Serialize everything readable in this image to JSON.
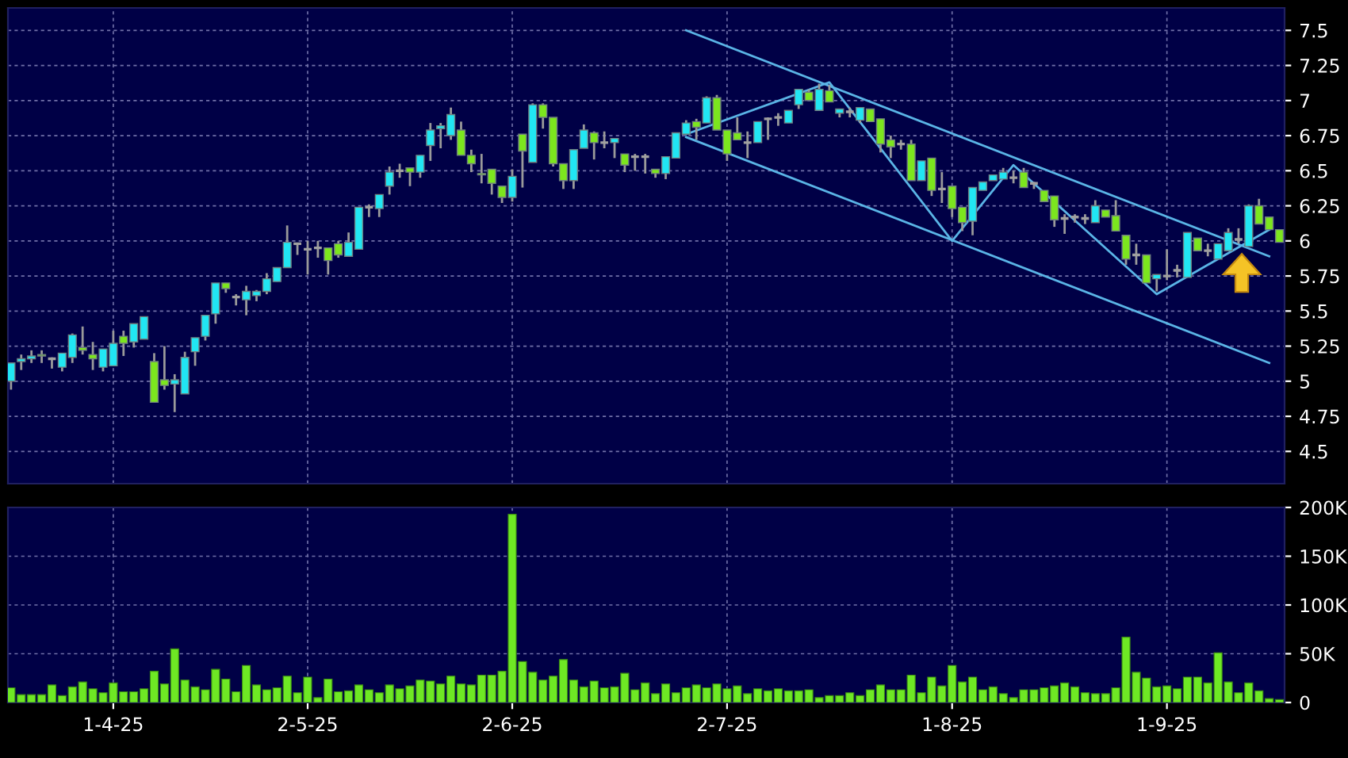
{
  "chart_data": [
    {
      "type": "candlestick",
      "categories": [
        null,
        null,
        null,
        null,
        null,
        null,
        null,
        null,
        null,
        null,
        null,
        null,
        null,
        null,
        null,
        null,
        null,
        null,
        null,
        null,
        null,
        null,
        null,
        null,
        null,
        null,
        null,
        null,
        null,
        null,
        null,
        null,
        null,
        null,
        null,
        null,
        null,
        null,
        null,
        null,
        null,
        null,
        null,
        null,
        null,
        null,
        null,
        null,
        null,
        null,
        null,
        null,
        null,
        null,
        null,
        null,
        null,
        null,
        null,
        null,
        null,
        null,
        null,
        null,
        null,
        null,
        null,
        null,
        null,
        null,
        null,
        null,
        null,
        null,
        null,
        null,
        null,
        null,
        null,
        null,
        null,
        null,
        null,
        null,
        null,
        null,
        null,
        null,
        null,
        null,
        null,
        null,
        null,
        null,
        null,
        null,
        null,
        null,
        null,
        null,
        null,
        null,
        null,
        null,
        null,
        null,
        null,
        null,
        null,
        null,
        null,
        null,
        null,
        null,
        null,
        null,
        null,
        null,
        null,
        null,
        null,
        null,
        null,
        null,
        null
      ],
      "ohlc": [
        [
          5.0,
          5.13,
          4.94,
          5.13
        ],
        [
          5.14,
          5.19,
          5.08,
          5.16
        ],
        [
          5.16,
          5.22,
          5.13,
          5.18
        ],
        [
          5.19,
          5.22,
          5.13,
          5.18
        ],
        [
          5.16,
          5.17,
          5.09,
          5.16
        ],
        [
          5.1,
          5.2,
          5.07,
          5.2
        ],
        [
          5.17,
          5.34,
          5.13,
          5.33
        ],
        [
          5.24,
          5.39,
          5.19,
          5.22
        ],
        [
          5.19,
          5.28,
          5.08,
          5.16
        ],
        [
          5.1,
          5.23,
          5.07,
          5.23
        ],
        [
          5.11,
          5.36,
          5.11,
          5.27
        ],
        [
          5.32,
          5.36,
          5.18,
          5.27
        ],
        [
          5.28,
          5.41,
          5.24,
          5.41
        ],
        [
          5.3,
          5.46,
          5.3,
          5.46
        ],
        [
          5.14,
          5.2,
          4.85,
          4.85
        ],
        [
          5.01,
          5.25,
          4.94,
          4.97
        ],
        [
          4.98,
          5.05,
          4.78,
          5.01
        ],
        [
          4.91,
          5.21,
          4.91,
          5.17
        ],
        [
          5.21,
          5.31,
          5.11,
          5.31
        ],
        [
          5.32,
          5.47,
          5.29,
          5.47
        ],
        [
          5.48,
          5.7,
          5.41,
          5.7
        ],
        [
          5.7,
          5.7,
          5.63,
          5.66
        ],
        [
          5.6,
          5.62,
          5.54,
          5.6
        ],
        [
          5.58,
          5.68,
          5.47,
          5.64
        ],
        [
          5.61,
          5.65,
          5.57,
          5.64
        ],
        [
          5.64,
          5.77,
          5.62,
          5.73
        ],
        [
          5.71,
          5.81,
          5.71,
          5.81
        ],
        [
          5.81,
          6.11,
          5.81,
          5.99
        ],
        [
          5.98,
          5.98,
          5.9,
          5.98
        ],
        [
          5.94,
          6.0,
          5.76,
          5.94
        ],
        [
          5.95,
          6.0,
          5.88,
          5.95
        ],
        [
          5.95,
          5.95,
          5.76,
          5.86
        ],
        [
          5.98,
          6.0,
          5.88,
          5.9
        ],
        [
          5.89,
          6.06,
          5.89,
          5.99
        ],
        [
          5.94,
          6.24,
          5.94,
          6.24
        ],
        [
          6.24,
          6.26,
          6.17,
          6.24
        ],
        [
          6.23,
          6.33,
          6.17,
          6.33
        ],
        [
          6.39,
          6.53,
          6.33,
          6.49
        ],
        [
          6.5,
          6.55,
          6.45,
          6.5
        ],
        [
          6.52,
          6.52,
          6.39,
          6.49
        ],
        [
          6.49,
          6.61,
          6.45,
          6.61
        ],
        [
          6.68,
          6.84,
          6.57,
          6.79
        ],
        [
          6.8,
          6.84,
          6.66,
          6.82
        ],
        [
          6.75,
          6.95,
          6.72,
          6.9
        ],
        [
          6.79,
          6.85,
          6.61,
          6.61
        ],
        [
          6.61,
          6.65,
          6.49,
          6.55
        ],
        [
          6.48,
          6.62,
          6.41,
          6.47
        ],
        [
          6.51,
          6.51,
          6.33,
          6.41
        ],
        [
          6.39,
          6.39,
          6.27,
          6.31
        ],
        [
          6.31,
          6.51,
          6.28,
          6.46
        ],
        [
          6.76,
          6.76,
          6.38,
          6.64
        ],
        [
          6.56,
          6.98,
          6.56,
          6.97
        ],
        [
          6.97,
          6.98,
          6.8,
          6.88
        ],
        [
          6.88,
          6.88,
          6.53,
          6.55
        ],
        [
          6.55,
          6.55,
          6.37,
          6.43
        ],
        [
          6.43,
          6.65,
          6.37,
          6.65
        ],
        [
          6.66,
          6.83,
          6.66,
          6.79
        ],
        [
          6.77,
          6.78,
          6.58,
          6.7
        ],
        [
          6.7,
          6.78,
          6.66,
          6.7
        ],
        [
          6.7,
          6.73,
          6.59,
          6.73
        ],
        [
          6.62,
          6.62,
          6.49,
          6.54
        ],
        [
          6.6,
          6.62,
          6.5,
          6.6
        ],
        [
          6.6,
          6.62,
          6.48,
          6.6
        ],
        [
          6.51,
          6.51,
          6.45,
          6.48
        ],
        [
          6.48,
          6.6,
          6.44,
          6.6
        ],
        [
          6.59,
          6.77,
          6.59,
          6.77
        ],
        [
          6.76,
          6.86,
          6.76,
          6.84
        ],
        [
          6.85,
          6.87,
          6.72,
          6.81
        ],
        [
          6.84,
          7.03,
          6.84,
          7.02
        ],
        [
          7.02,
          7.04,
          6.79,
          6.79
        ],
        [
          6.79,
          6.79,
          6.57,
          6.62
        ],
        [
          6.77,
          6.88,
          6.72,
          6.72
        ],
        [
          6.7,
          6.78,
          6.59,
          6.7
        ],
        [
          6.7,
          6.85,
          6.7,
          6.85
        ],
        [
          6.87,
          6.88,
          6.72,
          6.87
        ],
        [
          6.88,
          6.91,
          6.82,
          6.88
        ],
        [
          6.84,
          6.93,
          6.84,
          6.93
        ],
        [
          6.97,
          7.08,
          6.94,
          7.08
        ],
        [
          7.06,
          7.08,
          7.0,
          7.0
        ],
        [
          6.93,
          7.12,
          6.93,
          7.08
        ],
        [
          7.07,
          7.11,
          6.99,
          6.99
        ],
        [
          6.91,
          6.94,
          6.88,
          6.94
        ],
        [
          6.92,
          6.95,
          6.88,
          6.92
        ],
        [
          6.86,
          6.95,
          6.84,
          6.95
        ],
        [
          6.94,
          6.94,
          6.85,
          6.85
        ],
        [
          6.87,
          6.87,
          6.63,
          6.69
        ],
        [
          6.72,
          6.75,
          6.59,
          6.67
        ],
        [
          6.69,
          6.72,
          6.65,
          6.69
        ],
        [
          6.69,
          6.72,
          6.43,
          6.43
        ],
        [
          6.43,
          6.57,
          6.43,
          6.57
        ],
        [
          6.59,
          6.59,
          6.32,
          6.36
        ],
        [
          6.37,
          6.49,
          6.27,
          6.37
        ],
        [
          6.39,
          6.39,
          6.17,
          6.23
        ],
        [
          6.24,
          6.24,
          6.07,
          6.13
        ],
        [
          6.14,
          6.38,
          6.04,
          6.38
        ],
        [
          6.36,
          6.42,
          6.36,
          6.42
        ],
        [
          6.43,
          6.47,
          6.43,
          6.47
        ],
        [
          6.44,
          6.52,
          6.44,
          6.49
        ],
        [
          6.45,
          6.5,
          6.41,
          6.45
        ],
        [
          6.49,
          6.52,
          6.38,
          6.38
        ],
        [
          6.41,
          6.42,
          6.37,
          6.41
        ],
        [
          6.36,
          6.36,
          6.28,
          6.28
        ],
        [
          6.32,
          6.32,
          6.1,
          6.15
        ],
        [
          6.16,
          6.19,
          6.05,
          6.16
        ],
        [
          6.17,
          6.19,
          6.13,
          6.17
        ],
        [
          6.16,
          6.19,
          6.12,
          6.16
        ],
        [
          6.13,
          6.29,
          6.13,
          6.25
        ],
        [
          6.22,
          6.22,
          6.17,
          6.17
        ],
        [
          6.18,
          6.29,
          6.07,
          6.07
        ],
        [
          6.04,
          6.04,
          5.83,
          5.87
        ],
        [
          5.9,
          5.98,
          5.83,
          5.9
        ],
        [
          5.9,
          5.9,
          5.7,
          5.7
        ],
        [
          5.73,
          5.76,
          5.64,
          5.76
        ],
        [
          5.75,
          5.94,
          5.72,
          5.75
        ],
        [
          5.79,
          5.83,
          5.74,
          5.79
        ],
        [
          5.74,
          6.06,
          5.74,
          6.06
        ],
        [
          6.02,
          6.02,
          5.93,
          5.93
        ],
        [
          5.93,
          5.98,
          5.89,
          5.93
        ],
        [
          5.87,
          5.98,
          5.87,
          5.98
        ],
        [
          5.93,
          6.09,
          5.93,
          6.06
        ],
        [
          6.01,
          6.09,
          5.98,
          6.01
        ],
        [
          5.96,
          6.26,
          5.96,
          6.25
        ],
        [
          6.25,
          6.3,
          6.12,
          6.12
        ],
        [
          6.17,
          6.17,
          6.08,
          6.08
        ],
        [
          6.08,
          6.08,
          5.99,
          5.99
        ]
      ],
      "colors": [
        "#21e6f3",
        "#21e6f3",
        "#21e6f3",
        "#7ce61e",
        "#a0a0a0",
        "#21e6f3",
        "#21e6f3",
        "#7ce61e",
        "#7ce61e",
        "#21e6f3",
        "#21e6f3",
        "#7ce61e",
        "#21e6f3",
        "#21e6f3",
        "#7ce61e",
        "#7ce61e",
        "#21e6f3",
        "#21e6f3",
        "#21e6f3",
        "#21e6f3",
        "#21e6f3",
        "#7ce61e",
        "#a0a0a0",
        "#21e6f3",
        "#21e6f3",
        "#21e6f3",
        "#21e6f3",
        "#21e6f3",
        "#a0a0a0",
        "#a0a0a0",
        "#a0a0a0",
        "#7ce61e",
        "#7ce61e",
        "#21e6f3",
        "#21e6f3",
        "#a0a0a0",
        "#21e6f3",
        "#21e6f3",
        "#a0a0a0",
        "#7ce61e",
        "#21e6f3",
        "#21e6f3",
        "#21e6f3",
        "#21e6f3",
        "#7ce61e",
        "#7ce61e",
        "#7ce61e",
        "#7ce61e",
        "#7ce61e",
        "#21e6f3",
        "#7ce61e",
        "#21e6f3",
        "#7ce61e",
        "#7ce61e",
        "#7ce61e",
        "#21e6f3",
        "#21e6f3",
        "#7ce61e",
        "#a0a0a0",
        "#21e6f3",
        "#7ce61e",
        "#a0a0a0",
        "#a0a0a0",
        "#7ce61e",
        "#21e6f3",
        "#21e6f3",
        "#21e6f3",
        "#7ce61e",
        "#21e6f3",
        "#7ce61e",
        "#7ce61e",
        "#7ce61e",
        "#a0a0a0",
        "#21e6f3",
        "#a0a0a0",
        "#a0a0a0",
        "#21e6f3",
        "#21e6f3",
        "#7ce61e",
        "#21e6f3",
        "#7ce61e",
        "#21e6f3",
        "#a0a0a0",
        "#21e6f3",
        "#7ce61e",
        "#7ce61e",
        "#7ce61e",
        "#a0a0a0",
        "#7ce61e",
        "#21e6f3",
        "#7ce61e",
        "#a0a0a0",
        "#7ce61e",
        "#7ce61e",
        "#21e6f3",
        "#21e6f3",
        "#21e6f3",
        "#21e6f3",
        "#a0a0a0",
        "#7ce61e",
        "#a0a0a0",
        "#7ce61e",
        "#7ce61e",
        "#a0a0a0",
        "#a0a0a0",
        "#a0a0a0",
        "#21e6f3",
        "#7ce61e",
        "#7ce61e",
        "#7ce61e",
        "#a0a0a0",
        "#7ce61e",
        "#21e6f3",
        "#a0a0a0",
        "#a0a0a0",
        "#21e6f3",
        "#7ce61e",
        "#a0a0a0",
        "#21e6f3",
        "#21e6f3",
        "#a0a0a0",
        "#21e6f3",
        "#7ce61e",
        "#7ce61e",
        "#7ce61e"
      ],
      "series": [
        {
          "type": "line",
          "color": "#5ab4e6",
          "values": [
            null,
            null,
            null,
            null,
            null,
            null,
            null,
            null,
            null,
            null,
            null,
            null,
            null,
            null,
            null,
            null,
            null,
            null,
            null,
            null,
            null,
            null,
            null,
            null,
            null,
            null,
            null,
            null,
            null,
            null,
            null,
            null,
            null,
            null,
            null,
            null,
            null,
            null,
            null,
            null,
            null,
            null,
            null,
            null,
            null,
            null,
            null,
            null,
            null,
            null,
            null,
            null,
            null,
            null,
            null,
            null,
            null,
            null,
            null,
            null,
            null,
            null,
            null,
            null,
            null,
            null,
            7.5,
            null,
            null,
            null,
            null,
            null,
            null,
            null,
            null,
            null,
            null,
            null,
            null,
            null,
            null,
            null,
            null,
            null,
            null,
            null,
            null,
            null,
            null,
            null,
            null,
            null,
            null,
            null,
            null,
            null,
            null,
            null,
            null,
            null,
            null,
            null,
            null,
            null,
            null,
            null,
            null,
            null,
            null,
            null,
            null,
            null,
            null,
            null,
            null,
            null,
            null,
            null,
            null,
            null,
            null,
            null,
            null,
            5.89,
            null
          ]
        },
        {
          "type": "line",
          "color": "#5ab4e6",
          "values": [
            null,
            null,
            null,
            null,
            null,
            null,
            null,
            null,
            null,
            null,
            null,
            null,
            null,
            null,
            null,
            null,
            null,
            null,
            null,
            null,
            null,
            null,
            null,
            null,
            null,
            null,
            null,
            null,
            null,
            null,
            null,
            null,
            null,
            null,
            null,
            null,
            null,
            null,
            null,
            null,
            null,
            null,
            null,
            null,
            null,
            null,
            null,
            null,
            null,
            null,
            null,
            null,
            null,
            null,
            null,
            null,
            null,
            null,
            null,
            null,
            null,
            null,
            null,
            null,
            null,
            null,
            6.74,
            null,
            null,
            null,
            null,
            null,
            null,
            null,
            null,
            null,
            null,
            null,
            null,
            null,
            null,
            null,
            null,
            null,
            null,
            null,
            null,
            null,
            null,
            null,
            null,
            null,
            null,
            null,
            null,
            null,
            null,
            null,
            null,
            null,
            null,
            null,
            null,
            null,
            null,
            null,
            null,
            null,
            null,
            null,
            null,
            null,
            null,
            null,
            null,
            null,
            null,
            null,
            null,
            null,
            null,
            null,
            null,
            5.13,
            null
          ]
        },
        {
          "type": "line",
          "color": "#5ab4e6",
          "values": [
            null,
            null,
            null,
            null,
            null,
            null,
            null,
            null,
            null,
            null,
            null,
            null,
            null,
            null,
            null,
            null,
            null,
            null,
            null,
            null,
            null,
            null,
            null,
            null,
            null,
            null,
            null,
            null,
            null,
            null,
            null,
            null,
            null,
            null,
            null,
            null,
            null,
            null,
            null,
            null,
            null,
            null,
            null,
            null,
            null,
            null,
            null,
            null,
            null,
            null,
            null,
            null,
            null,
            null,
            null,
            null,
            null,
            null,
            null,
            null,
            null,
            null,
            null,
            null,
            null,
            null,
            6.76,
            null,
            null,
            null,
            null,
            null,
            null,
            null,
            null,
            null,
            null,
            null,
            null,
            null,
            7.13,
            null,
            null,
            null,
            null,
            null,
            null,
            null,
            null,
            null,
            null,
            null,
            6.0,
            null,
            null,
            null,
            null,
            null,
            6.54,
            null,
            null,
            null,
            null,
            null,
            null,
            null,
            null,
            null,
            null,
            null,
            null,
            null,
            5.62,
            null,
            null,
            null,
            null,
            null,
            null,
            null,
            null,
            null,
            null,
            6.08,
            null
          ]
        }
      ],
      "ylim": [
        4.27,
        7.66
      ],
      "yticks": [
        4.5,
        4.75,
        5,
        5.25,
        5.5,
        5.75,
        6,
        6.25,
        6.5,
        6.75,
        7,
        7.25,
        7.5
      ],
      "grid": true,
      "tick_labels": "y"
    },
    {
      "type": "bar",
      "categories": [
        null,
        null,
        null,
        null,
        null,
        null,
        null,
        null,
        null,
        null,
        "1-4-25",
        null,
        null,
        null,
        null,
        null,
        null,
        null,
        null,
        null,
        null,
        null,
        null,
        null,
        null,
        null,
        null,
        null,
        null,
        "2-5-25",
        null,
        null,
        null,
        null,
        null,
        null,
        null,
        null,
        null,
        null,
        null,
        null,
        null,
        null,
        null,
        null,
        null,
        null,
        null,
        "2-6-25",
        null,
        null,
        null,
        null,
        null,
        null,
        null,
        null,
        null,
        null,
        null,
        null,
        null,
        null,
        null,
        null,
        null,
        null,
        null,
        null,
        "2-7-25",
        null,
        null,
        null,
        null,
        null,
        null,
        null,
        null,
        null,
        null,
        null,
        null,
        null,
        null,
        null,
        null,
        null,
        null,
        null,
        null,
        null,
        "1-8-25",
        null,
        null,
        null,
        null,
        null,
        null,
        null,
        null,
        null,
        null,
        null,
        null,
        null,
        null,
        null,
        null,
        null,
        null,
        null,
        null,
        "1-9-25",
        null,
        null,
        null,
        null,
        null,
        null,
        null,
        null,
        null,
        null,
        null
      ],
      "values": [
        15000,
        8000,
        8000,
        8000,
        18000,
        7000,
        16000,
        21000,
        14000,
        10000,
        20000,
        11000,
        11000,
        14000,
        32000,
        19000,
        55000,
        23000,
        16000,
        13000,
        34000,
        24000,
        11000,
        38000,
        18000,
        13000,
        15000,
        27000,
        10000,
        26000,
        5000,
        24000,
        11000,
        12000,
        18000,
        13000,
        10000,
        18000,
        14000,
        17000,
        23000,
        22000,
        19000,
        27000,
        19000,
        18000,
        28000,
        28000,
        32000,
        193000,
        42000,
        31000,
        23000,
        27000,
        44000,
        23000,
        16000,
        22000,
        15000,
        16000,
        30000,
        13000,
        20000,
        9000,
        19000,
        10000,
        15000,
        18000,
        15000,
        19000,
        14000,
        17000,
        9000,
        14000,
        12000,
        14000,
        12000,
        12000,
        13000,
        5000,
        7000,
        7000,
        10000,
        7000,
        13000,
        18000,
        13000,
        13000,
        28000,
        10000,
        26000,
        17000,
        38000,
        21000,
        26000,
        13000,
        16000,
        9000,
        5000,
        13000,
        13000,
        15000,
        17000,
        20000,
        16000,
        10000,
        9000,
        9000,
        15000,
        67000,
        31000,
        25000,
        16000,
        17000,
        14000,
        26000,
        26000,
        20000,
        51000,
        21000,
        10000,
        20000,
        12000,
        4000,
        3000
      ],
      "color": "#6ee824",
      "ylim": [
        0,
        200000
      ],
      "yticks": [
        0,
        {
          "value": 50000,
          "label": "50K"
        },
        {
          "value": 100000,
          "label": "100K"
        },
        {
          "value": 150000,
          "label": "150K"
        },
        {
          "value": 200000,
          "label": "200K"
        }
      ],
      "grid": true
    }
  ]
}
